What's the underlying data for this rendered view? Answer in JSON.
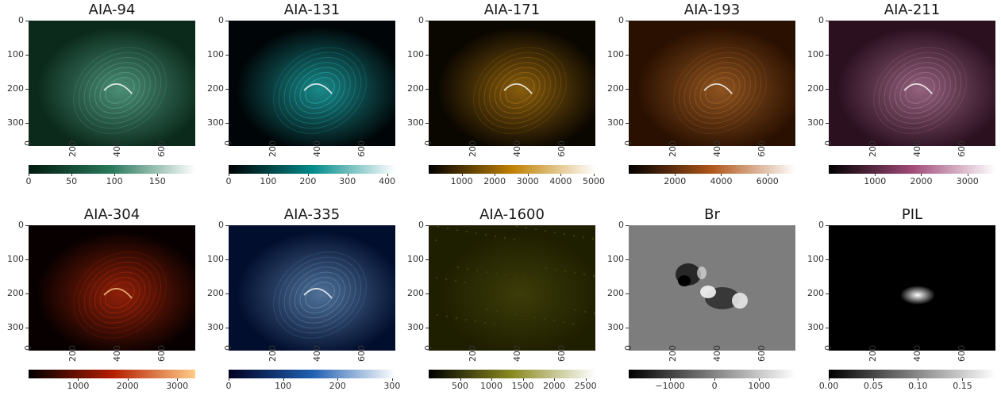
{
  "panels": [
    {
      "title": "AIA-94",
      "cmap": [
        "#001a0e",
        "#2a7a5c",
        "#ffffff"
      ],
      "glow": "#7fe0c0",
      "bg": "#0b2a1c",
      "cbar_ticks": [
        "0",
        "50",
        "100",
        "150"
      ],
      "cbar_pos": [
        0.0,
        0.26,
        0.52,
        0.78
      ]
    },
    {
      "title": "AIA-131",
      "cmap": [
        "#000000",
        "#008a8a",
        "#ffffff"
      ],
      "glow": "#2ff5f5",
      "bg": "#000608",
      "cbar_ticks": [
        "0",
        "100",
        "200",
        "300",
        "400"
      ],
      "cbar_pos": [
        0.0,
        0.24,
        0.48,
        0.72,
        0.96
      ]
    },
    {
      "title": "AIA-171",
      "cmap": [
        "#000000",
        "#c08000",
        "#ffffff"
      ],
      "glow": "#f0a418",
      "bg": "#0a0600",
      "cbar_ticks": [
        "1000",
        "2000",
        "3000",
        "4000",
        "5000"
      ],
      "cbar_pos": [
        0.2,
        0.4,
        0.6,
        0.8,
        1.0
      ]
    },
    {
      "title": "AIA-193",
      "cmap": [
        "#000000",
        "#b0561a",
        "#ffffff"
      ],
      "glow": "#e08a3a",
      "bg": "#2a1000",
      "cbar_ticks": [
        "2000",
        "4000",
        "6000"
      ],
      "cbar_pos": [
        0.28,
        0.56,
        0.84
      ]
    },
    {
      "title": "AIA-211",
      "cmap": [
        "#000000",
        "#a04a78",
        "#ffffff"
      ],
      "glow": "#e9a4c8",
      "bg": "#2b1020",
      "cbar_ticks": [
        "1000",
        "2000",
        "3000"
      ],
      "cbar_pos": [
        0.28,
        0.56,
        0.84
      ]
    },
    {
      "title": "AIA-304",
      "cmap": [
        "#000000",
        "#b31c00",
        "#ffcc88"
      ],
      "glow": "#ff3a10",
      "bg": "#080000",
      "cbar_ticks": [
        "1000",
        "2000",
        "3000"
      ],
      "cbar_pos": [
        0.3,
        0.6,
        0.9
      ]
    },
    {
      "title": "AIA-335",
      "cmap": [
        "#000022",
        "#1f5fb0",
        "#ffffff"
      ],
      "glow": "#8ec3f0",
      "bg": "#020e2e",
      "cbar_ticks": [
        "0",
        "100",
        "200",
        "300"
      ],
      "cbar_pos": [
        0.0,
        0.33,
        0.66,
        0.99
      ]
    },
    {
      "title": "AIA-1600",
      "cmap": [
        "#000000",
        "#8a8a20",
        "#ffffff"
      ],
      "glow": "#8a8a20",
      "bg": "#1e1e00",
      "cbar_ticks": [
        "500",
        "1000",
        "1500",
        "2000",
        "2500"
      ],
      "cbar_pos": [
        0.19,
        0.38,
        0.57,
        0.76,
        0.95
      ]
    },
    {
      "title": "Br",
      "cmap": [
        "#000000",
        "#808080",
        "#ffffff"
      ],
      "glow": "#ffffff",
      "bg": "#7d7d7d",
      "cbar_ticks": [
        "−1000",
        "0",
        "1000"
      ],
      "cbar_pos": [
        0.25,
        0.52,
        0.79
      ]
    },
    {
      "title": "PIL",
      "cmap": [
        "#000000",
        "#808080",
        "#ffffff"
      ],
      "glow": "#ffffff",
      "bg": "#000000",
      "cbar_ticks": [
        "0.00",
        "0.05",
        "0.10",
        "0.15"
      ],
      "cbar_pos": [
        0.0,
        0.27,
        0.54,
        0.81
      ]
    }
  ],
  "y_ticks": [
    "0",
    "100",
    "200",
    "300"
  ],
  "x_ticks": [
    "0",
    "200",
    "400",
    "600"
  ]
}
